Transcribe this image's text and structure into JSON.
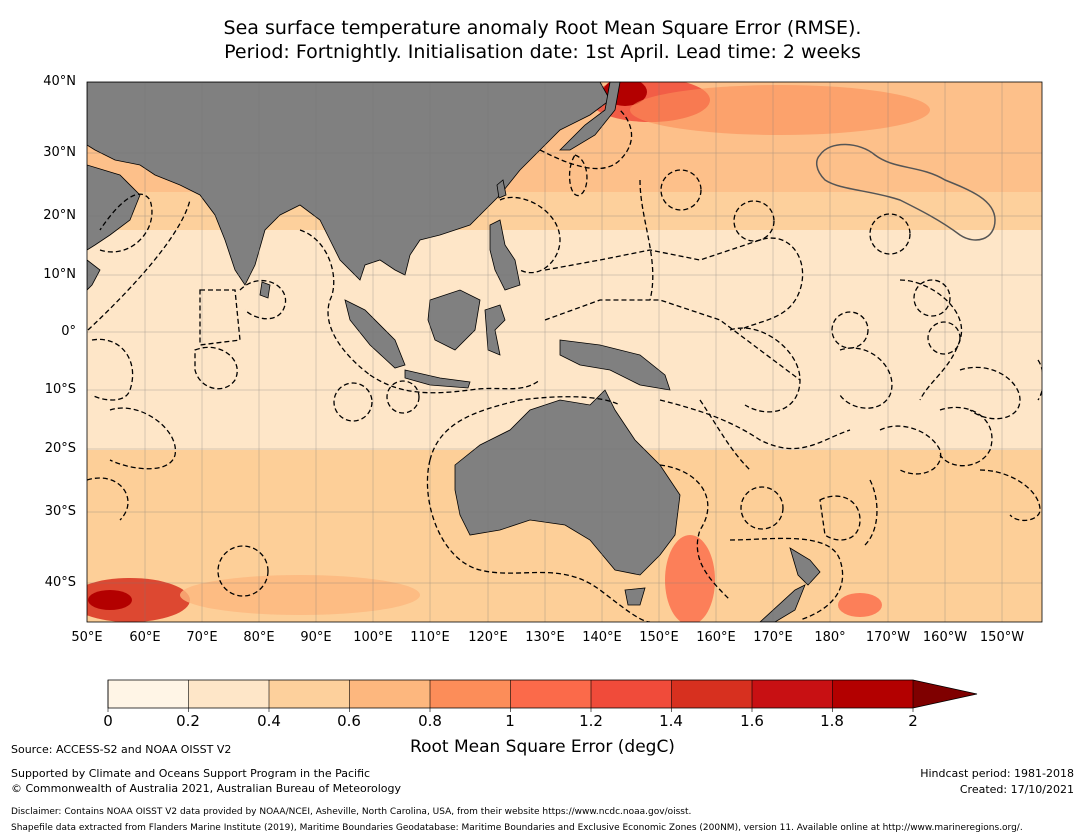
{
  "title": {
    "line1": "Sea surface temperature anomaly Root Mean Square Error (RMSE).",
    "line2": "Period: Fortnightly. Initialisation date: 1st April. Lead time: 2 weeks"
  },
  "map": {
    "lat_labels": [
      "40°N",
      "30°N",
      "20°N",
      "10°N",
      "0°",
      "10°S",
      "20°S",
      "30°S",
      "40°S"
    ],
    "lon_labels": [
      "50°E",
      "60°E",
      "70°E",
      "80°E",
      "90°E",
      "100°E",
      "110°E",
      "120°E",
      "130°E",
      "140°E",
      "150°E",
      "160°E",
      "170°E",
      "180°",
      "170°W",
      "160°W",
      "150°W"
    ],
    "land_color": "#808080",
    "ocean_base_color": "#fde0c0"
  },
  "colorbar": {
    "ticks": [
      "0",
      "0.2",
      "0.4",
      "0.6",
      "0.8",
      "1",
      "1.2",
      "1.4",
      "1.6",
      "1.8",
      "2"
    ],
    "colors": [
      "#fff5e6",
      "#fee6c8",
      "#fdd09c",
      "#fdb77e",
      "#fc8d59",
      "#fb6a4a",
      "#f04b3a",
      "#d7301f",
      "#c81013",
      "#b30000"
    ],
    "extend_color": "#7f0000",
    "label": "Root Mean Square Error (degC)"
  },
  "footer": {
    "source": "Source: ACCESS-S2 and NOAA OISST V2",
    "supported_1": "Supported by Climate and Oceans Support Program in the Pacific",
    "supported_2": "© Commonwealth of Australia 2021, Australian Bureau of Meteorology",
    "hindcast": "Hindcast period: 1981-2018",
    "created": "Created: 17/10/2021",
    "disclaimer": "Disclaimer: Contains NOAA OISST V2 data provided by NOAA/NCEI, Asheville, North Carolina, USA, from their website https://www.ncdc.noaa.gov/oisst.",
    "shapefile": "Shapefile data extracted from Flanders Marine Institute (2019), Maritime Boundaries Geodatabase: Maritime Boundaries and Exclusive Economic Zones (200NM), version 11. Available online at http://www.marineregions.org/."
  }
}
